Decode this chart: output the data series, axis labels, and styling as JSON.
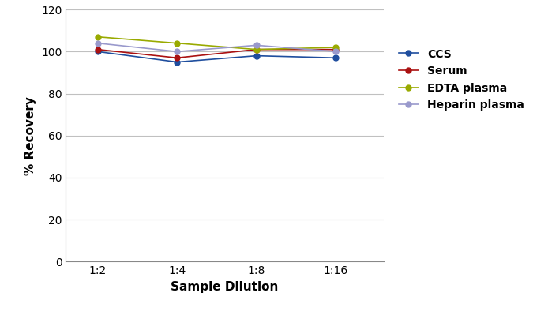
{
  "xlabel": "Sample Dilution",
  "ylabel": "% Recovery",
  "x_labels": [
    "1:2",
    "1:4",
    "1:8",
    "1:16"
  ],
  "x_values": [
    1,
    2,
    3,
    4
  ],
  "series": [
    {
      "label": "CCS",
      "color": "#1f4e9e",
      "values": [
        100,
        95,
        98,
        97
      ]
    },
    {
      "label": "Serum",
      "color": "#aa1111",
      "values": [
        101,
        97,
        101,
        101
      ]
    },
    {
      "label": "EDTA plasma",
      "color": "#99aa00",
      "values": [
        107,
        104,
        101,
        102
      ]
    },
    {
      "label": "Heparin plasma",
      "color": "#9999cc",
      "values": [
        104,
        100,
        103,
        100
      ]
    }
  ],
  "ylim": [
    0,
    120
  ],
  "yticks": [
    0,
    20,
    40,
    60,
    80,
    100,
    120
  ],
  "grid_color": "#c0c0c0",
  "background_color": "#ffffff",
  "plot_background": "#ffffff",
  "marker": "o",
  "markersize": 5,
  "linewidth": 1.2,
  "axis_label_fontsize": 11,
  "tick_fontsize": 10,
  "legend_fontsize": 10
}
